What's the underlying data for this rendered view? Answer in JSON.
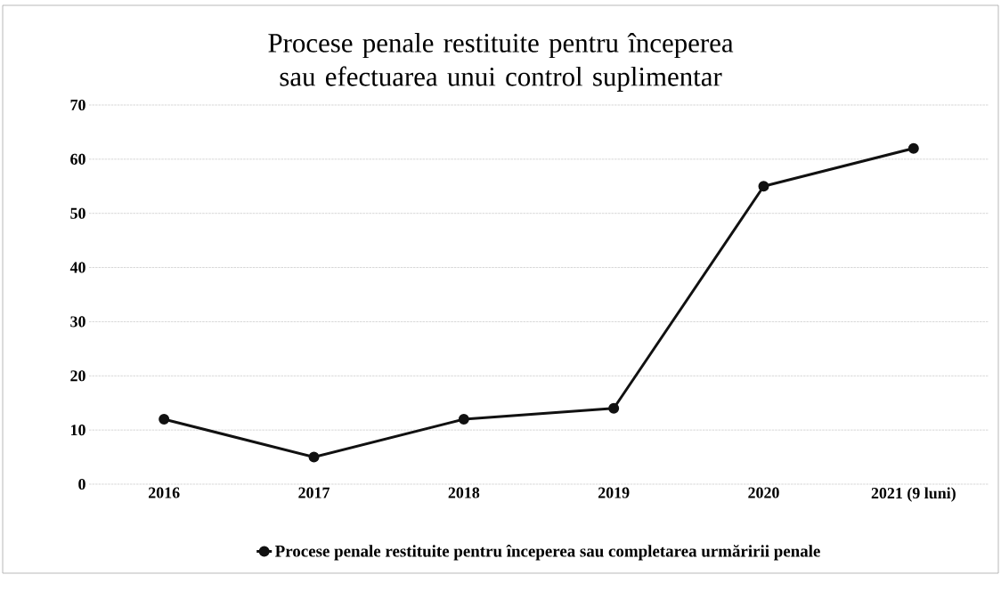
{
  "chart_data": {
    "type": "line",
    "title": "Procese penale restituite pentru începerea sau efectuarea unui control suplimentar",
    "categories": [
      "2016",
      "2017",
      "2018",
      "2019",
      "2020",
      "2021 (9 luni)"
    ],
    "series": [
      {
        "name": "Procese penale restituite pentru începerea sau completarea urmăririi penale",
        "color": "#111111",
        "values": [
          12,
          5,
          12,
          14,
          55,
          62
        ]
      }
    ],
    "ylim": [
      0,
      70
    ],
    "yticks": [
      0,
      10,
      20,
      30,
      40,
      50,
      60,
      70
    ],
    "grid": "y",
    "legend": "bottom",
    "marker": "circle",
    "line_style": "solid"
  }
}
